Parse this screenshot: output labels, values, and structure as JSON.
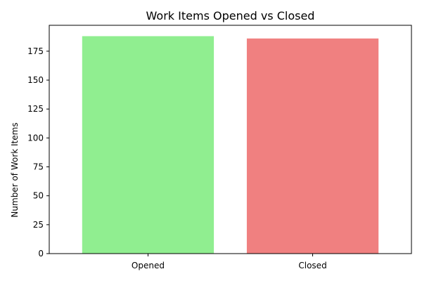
{
  "chart_data": {
    "type": "bar",
    "title": "Work Items Opened vs Closed",
    "xlabel": "",
    "ylabel": "Number of Work Items",
    "categories": [
      "Opened",
      "Closed"
    ],
    "values": [
      188,
      186
    ],
    "colors": [
      "#90ee90",
      "#f08080"
    ],
    "ylim": [
      0,
      197.4
    ],
    "yticks": [
      0,
      25,
      50,
      75,
      100,
      125,
      150,
      175
    ],
    "grid": false
  }
}
